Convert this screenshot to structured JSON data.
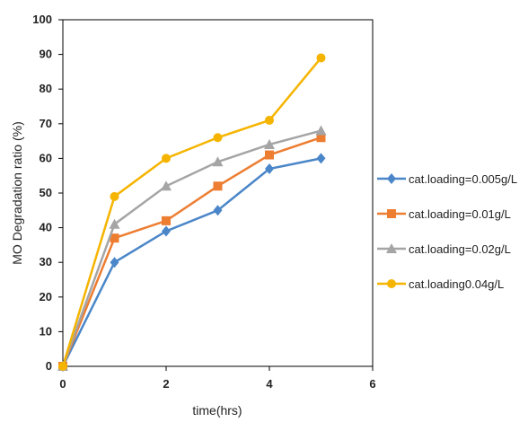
{
  "chart_data": {
    "type": "line",
    "title": "",
    "xlabel": "time(hrs)",
    "ylabel": "MO Degradation ratio (%)",
    "xlim": [
      0,
      6
    ],
    "ylim": [
      0,
      100
    ],
    "xticks": [
      0,
      2,
      4,
      6
    ],
    "yticks": [
      0,
      10,
      20,
      30,
      40,
      50,
      60,
      70,
      80,
      90,
      100
    ],
    "grid": false,
    "legend_position": "right",
    "x": [
      0,
      1,
      2,
      3,
      4,
      5
    ],
    "series": [
      {
        "name": "cat.loading=0.005g/L",
        "values": [
          0,
          30,
          39,
          45,
          57,
          60
        ],
        "color": "#4a86c8",
        "marker": "diamond"
      },
      {
        "name": "cat.loading=0.01g/L",
        "values": [
          0,
          37,
          42,
          52,
          61,
          66
        ],
        "color": "#ed7d31",
        "marker": "square"
      },
      {
        "name": "cat.loading=0.02g/L",
        "values": [
          0,
          41,
          52,
          59,
          64,
          68
        ],
        "color": "#a5a5a5",
        "marker": "triangle"
      },
      {
        "name": "cat.loading0.04g/L",
        "values": [
          0,
          49,
          60,
          66,
          71,
          89
        ],
        "color": "#f5b400",
        "marker": "circle"
      }
    ]
  }
}
